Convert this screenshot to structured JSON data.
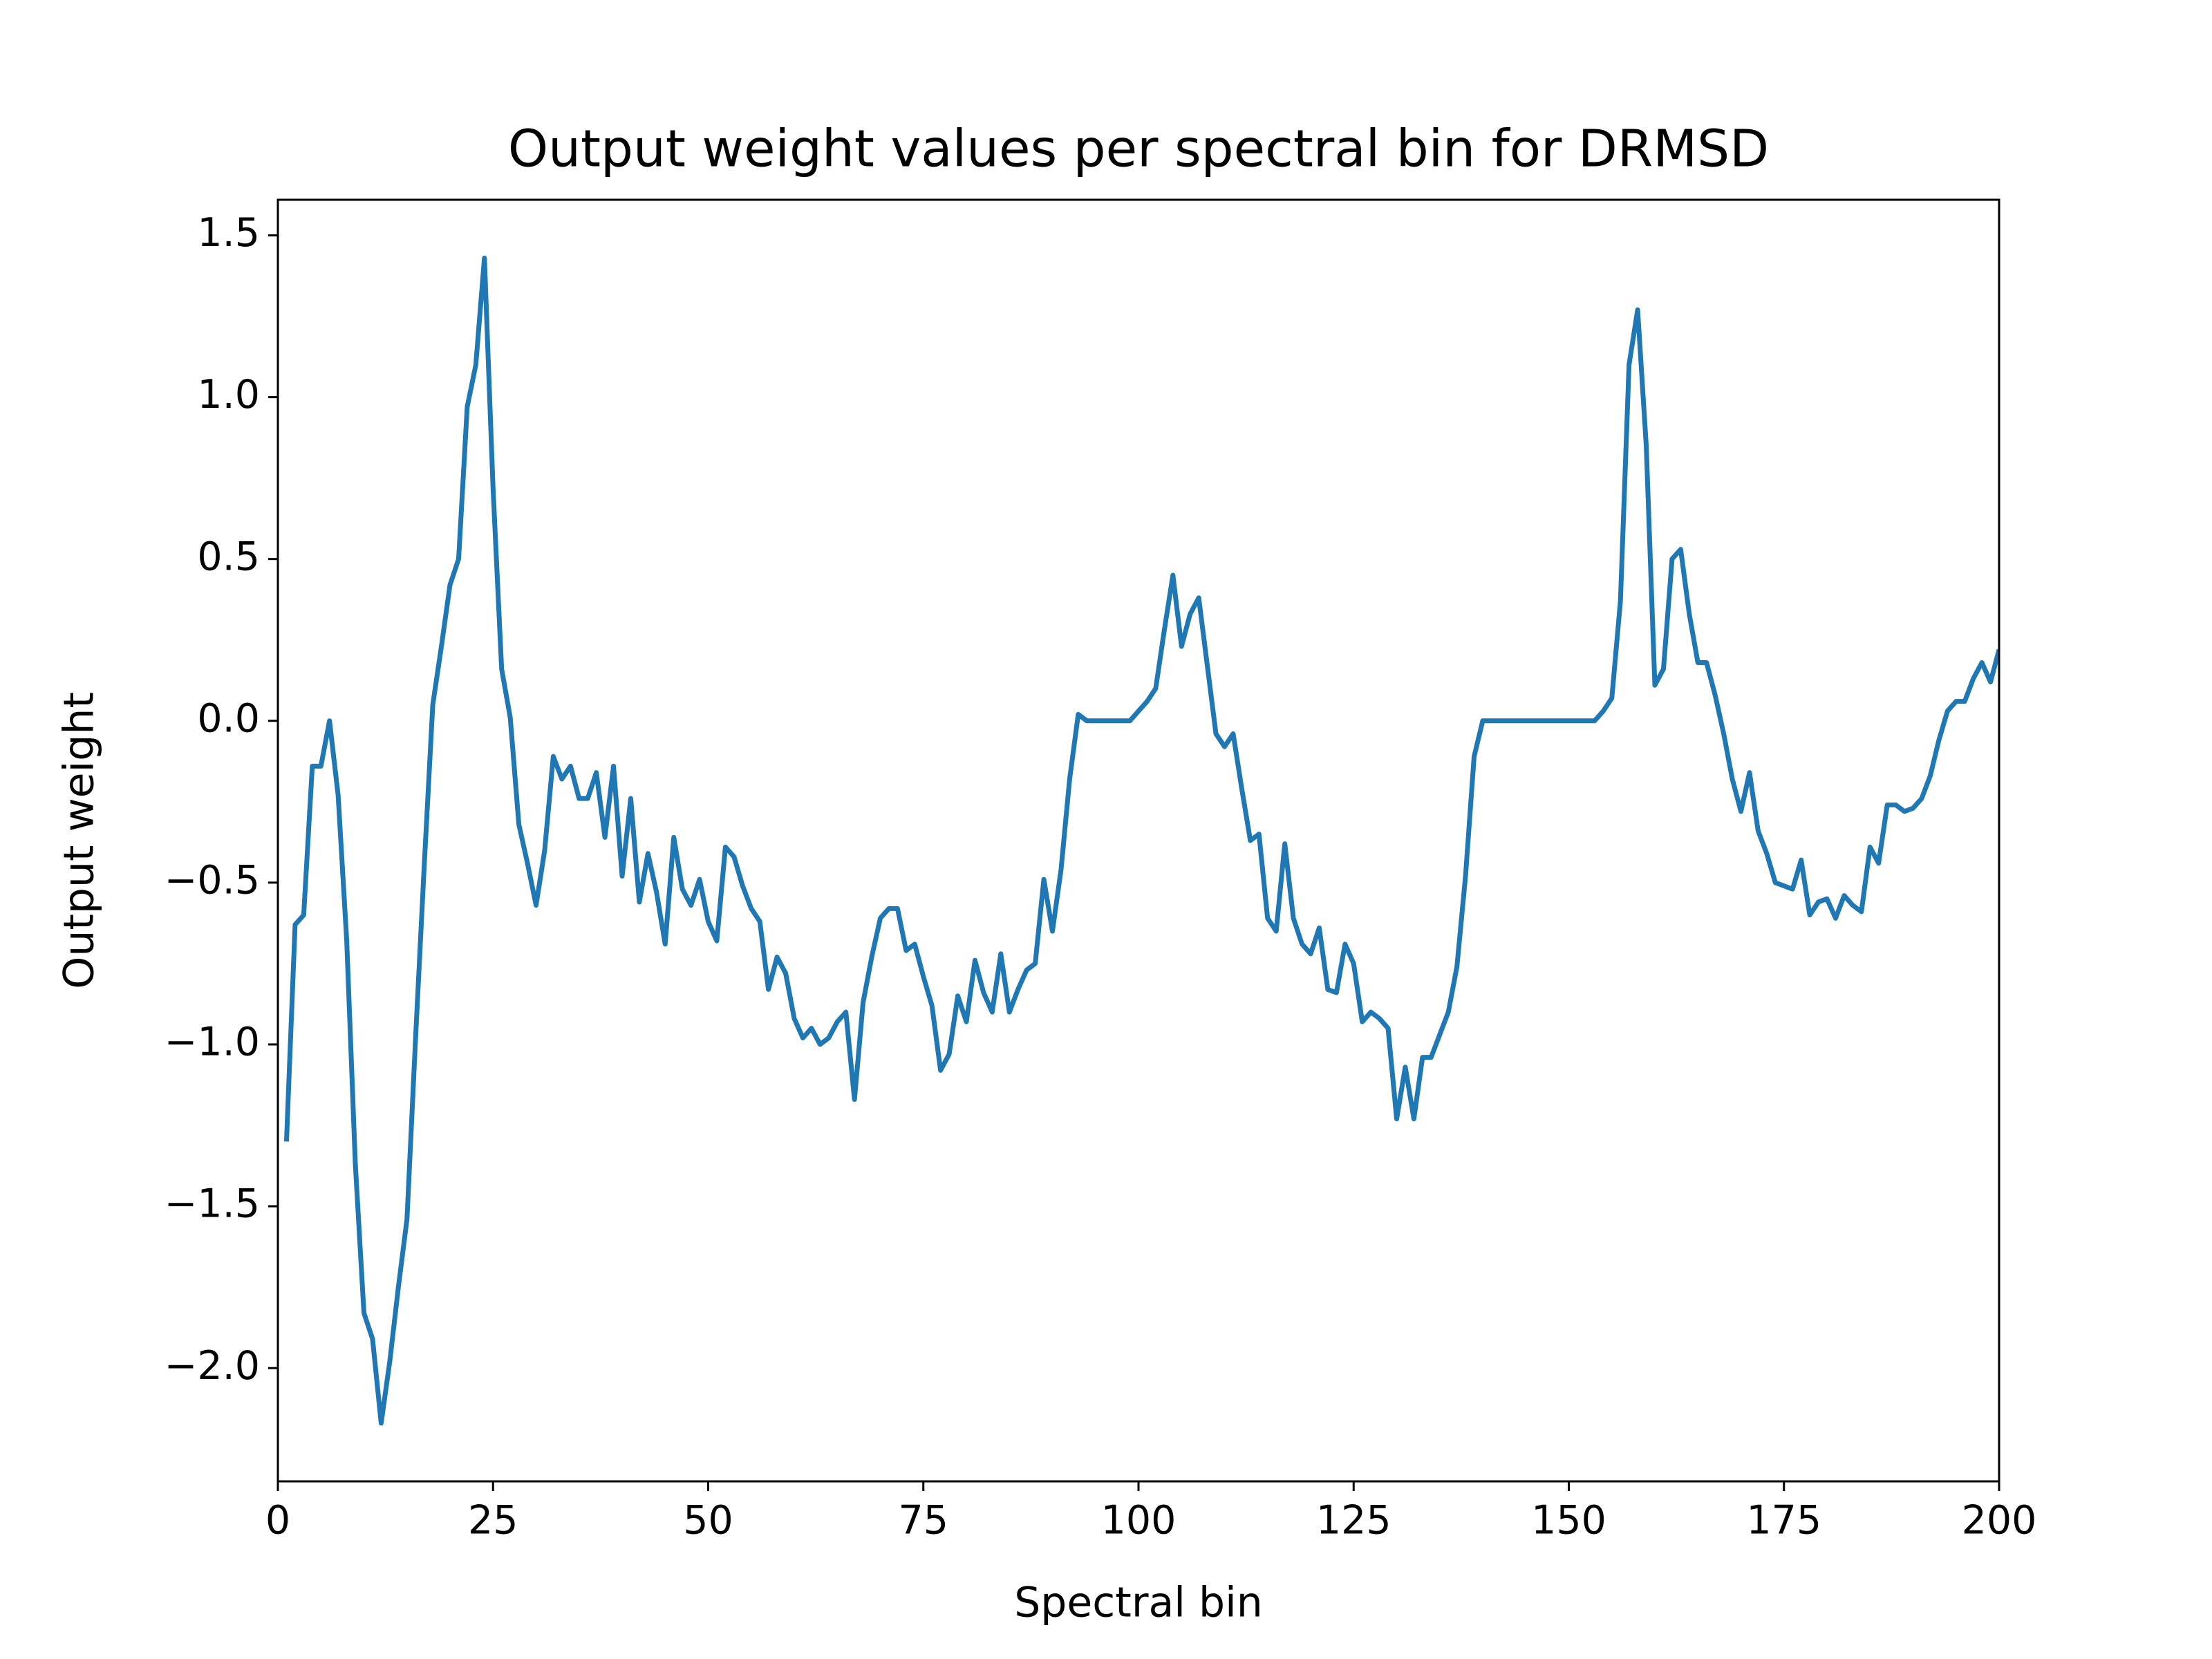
{
  "chart_data": {
    "type": "line",
    "title": "Output weight values per spectral bin for DRMSD",
    "x_label": "Spectral bin",
    "y_label": "Output weight",
    "x": [
      1,
      2,
      3,
      4,
      5,
      6,
      7,
      8,
      9,
      10,
      11,
      12,
      13,
      14,
      15,
      16,
      17,
      18,
      19,
      20,
      21,
      22,
      23,
      24,
      25,
      26,
      27,
      28,
      29,
      30,
      31,
      32,
      33,
      34,
      35,
      36,
      37,
      38,
      39,
      40,
      41,
      42,
      43,
      44,
      45,
      46,
      47,
      48,
      49,
      50,
      51,
      52,
      53,
      54,
      55,
      56,
      57,
      58,
      59,
      60,
      61,
      62,
      63,
      64,
      65,
      66,
      67,
      68,
      69,
      70,
      71,
      72,
      73,
      74,
      75,
      76,
      77,
      78,
      79,
      80,
      81,
      82,
      83,
      84,
      85,
      86,
      87,
      88,
      89,
      90,
      91,
      92,
      93,
      94,
      95,
      96,
      97,
      98,
      99,
      100,
      101,
      102,
      103,
      104,
      105,
      106,
      107,
      108,
      109,
      110,
      111,
      112,
      113,
      114,
      115,
      116,
      117,
      118,
      119,
      120,
      121,
      122,
      123,
      124,
      125,
      126,
      127,
      128,
      129,
      130,
      131,
      132,
      133,
      134,
      135,
      136,
      137,
      138,
      139,
      140,
      141,
      142,
      143,
      144,
      145,
      146,
      147,
      148,
      149,
      150,
      151,
      152,
      153,
      154,
      155,
      156,
      157,
      158,
      159,
      160,
      161,
      162,
      163,
      164,
      165,
      166,
      167,
      168,
      169,
      170,
      171,
      172,
      173,
      174,
      175,
      176,
      177,
      178,
      179,
      180,
      181,
      182,
      183,
      184,
      185,
      186,
      187,
      188,
      189,
      190,
      191,
      192,
      193,
      194,
      195,
      196,
      197,
      198,
      199,
      200
    ],
    "series": [
      {
        "name": "Output weight",
        "color": "#1f77b4",
        "values": [
          -1.3,
          -0.63,
          -0.6,
          -0.14,
          -0.14,
          0.0,
          -0.23,
          -0.68,
          -1.37,
          -1.83,
          -1.91,
          -2.17,
          -1.98,
          -1.75,
          -1.54,
          -0.98,
          -0.45,
          0.05,
          0.23,
          0.42,
          0.5,
          0.97,
          1.1,
          1.43,
          0.72,
          0.16,
          0.01,
          -0.32,
          -0.44,
          -0.57,
          -0.4,
          -0.11,
          -0.18,
          -0.14,
          -0.24,
          -0.24,
          -0.16,
          -0.36,
          -0.14,
          -0.48,
          -0.24,
          -0.56,
          -0.41,
          -0.53,
          -0.69,
          -0.36,
          -0.52,
          -0.57,
          -0.49,
          -0.62,
          -0.68,
          -0.39,
          -0.42,
          -0.51,
          -0.58,
          -0.62,
          -0.83,
          -0.73,
          -0.78,
          -0.92,
          -0.98,
          -0.95,
          -1.0,
          -0.98,
          -0.93,
          -0.9,
          -1.17,
          -0.87,
          -0.73,
          -0.61,
          -0.58,
          -0.58,
          -0.71,
          -0.69,
          -0.79,
          -0.88,
          -1.08,
          -1.03,
          -0.85,
          -0.93,
          -0.74,
          -0.84,
          -0.9,
          -0.72,
          -0.9,
          -0.83,
          -0.77,
          -0.75,
          -0.49,
          -0.65,
          -0.46,
          -0.18,
          0.02,
          0.0,
          0.0,
          0.0,
          0.0,
          0.0,
          0.0,
          0.03,
          0.06,
          0.1,
          0.28,
          0.45,
          0.23,
          0.33,
          0.38,
          0.17,
          -0.04,
          -0.08,
          -0.04,
          -0.21,
          -0.37,
          -0.35,
          -0.61,
          -0.65,
          -0.38,
          -0.61,
          -0.69,
          -0.72,
          -0.64,
          -0.83,
          -0.84,
          -0.69,
          -0.75,
          -0.93,
          -0.9,
          -0.92,
          -0.95,
          -1.23,
          -1.07,
          -1.23,
          -1.04,
          -1.04,
          -0.97,
          -0.9,
          -0.76,
          -0.48,
          -0.11,
          0.0,
          0.0,
          0.0,
          0.0,
          0.0,
          0.0,
          0.0,
          0.0,
          0.0,
          0.0,
          0.0,
          0.0,
          0.0,
          0.0,
          0.03,
          0.07,
          0.37,
          1.1,
          1.27,
          0.85,
          0.11,
          0.16,
          0.5,
          0.53,
          0.33,
          0.18,
          0.18,
          0.08,
          -0.04,
          -0.18,
          -0.28,
          -0.16,
          -0.34,
          -0.41,
          -0.5,
          -0.51,
          -0.52,
          -0.43,
          -0.6,
          -0.56,
          -0.55,
          -0.61,
          -0.54,
          -0.57,
          -0.59,
          -0.39,
          -0.44,
          -0.26,
          -0.26,
          -0.28,
          -0.27,
          -0.24,
          -0.17,
          -0.06,
          0.03,
          0.06,
          0.06,
          0.13,
          0.18,
          0.12,
          0.22
        ]
      }
    ],
    "xlim": [
      0,
      200
    ],
    "ylim": [
      -2.35,
      1.61
    ],
    "xticks": [
      0,
      25,
      50,
      75,
      100,
      125,
      150,
      175,
      200
    ],
    "yticks": [
      {
        "value": -2.0,
        "label": "−2.0"
      },
      {
        "value": -1.5,
        "label": "−1.5"
      },
      {
        "value": -1.0,
        "label": "−1.0"
      },
      {
        "value": -0.5,
        "label": "−0.5"
      },
      {
        "value": 0.0,
        "label": "0.0"
      },
      {
        "value": 0.5,
        "label": "0.5"
      },
      {
        "value": 1.0,
        "label": "1.0"
      },
      {
        "value": 1.5,
        "label": "1.5"
      }
    ],
    "grid": false
  }
}
